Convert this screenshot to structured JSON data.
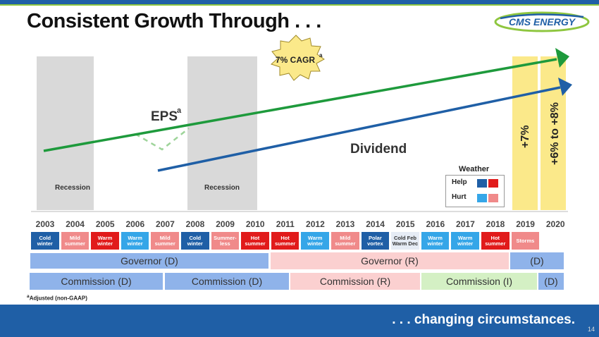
{
  "title": "Consistent Growth Through . . .",
  "logo_text": "CMS ENERGY",
  "burst_label": "7% CAGR",
  "burst_sup": "a",
  "eps_label": "EPS",
  "eps_sup": "a",
  "dividend_label": "Dividend",
  "recession_labels": [
    "Recession",
    "Recession"
  ],
  "forecast_labels": [
    "+7%",
    "+6% to +8%"
  ],
  "weather_legend": {
    "title": "Weather",
    "help": "Help",
    "hurt": "Hurt"
  },
  "years": [
    "2003",
    "2004",
    "2005",
    "2006",
    "2007",
    "2008",
    "2009",
    "2010",
    "2011",
    "2012",
    "2013",
    "2014",
    "2015",
    "2016",
    "2017",
    "2018",
    "2019",
    "2020"
  ],
  "weather_cells": [
    {
      "text": "Cold\nwinter",
      "color": "#1f5fa6"
    },
    {
      "text": "Mild\nsummer",
      "color": "#f08a8a"
    },
    {
      "text": "Warm\nwinter",
      "color": "#e11b1b"
    },
    {
      "text": "Warm\nwinter",
      "color": "#35a6e8"
    },
    {
      "text": "Mild\nsummer",
      "color": "#f08a8a"
    },
    {
      "text": "Cold\nwinter",
      "color": "#1f5fa6"
    },
    {
      "text": "Summer-\nless",
      "color": "#f08a8a"
    },
    {
      "text": "Hot\nsummer",
      "color": "#e11b1b"
    },
    {
      "text": "Hot\nsummer",
      "color": "#e11b1b"
    },
    {
      "text": "Warm\nwinter",
      "color": "#35a6e8"
    },
    {
      "text": "Mild\nsummer",
      "color": "#f08a8a"
    },
    {
      "text": "Polar\nvortex",
      "color": "#1f5fa6"
    },
    {
      "text": "Cold Feb\nWarm Dec",
      "color": "#e6ecf5"
    },
    {
      "text": "Warm\nwinter",
      "color": "#35a6e8"
    },
    {
      "text": "Warm\nwinter",
      "color": "#35a6e8"
    },
    {
      "text": "Hot\nsummer",
      "color": "#e11b1b"
    },
    {
      "text": "Storms",
      "color": "#f08a8a"
    }
  ],
  "governor_row": [
    "Governor (D)",
    "Governor (R)",
    "(D)"
  ],
  "commission_row": [
    "Commission (D)",
    "Commission (D)",
    "Commission (R)",
    "Commission (I)",
    "(D)"
  ],
  "footnote": "Adjusted (non-GAAP)",
  "footnote_sup": "a",
  "tagline": ". . . changing circumstances.",
  "page_number": "14",
  "colors": {
    "brand_blue": "#1f5fa6",
    "eps_green": "#1e9a3c",
    "dividend_blue": "#1f5fa6",
    "recession_gray": "#d9d9d9",
    "forecast_yellow": "#fbe98a",
    "help_red": "#e11b1b",
    "hurt_blue": "#35a6e8",
    "governor_d": "#8fb3ea",
    "governor_r": "#fbd0d0",
    "commission_i": "#d4f0c4"
  }
}
